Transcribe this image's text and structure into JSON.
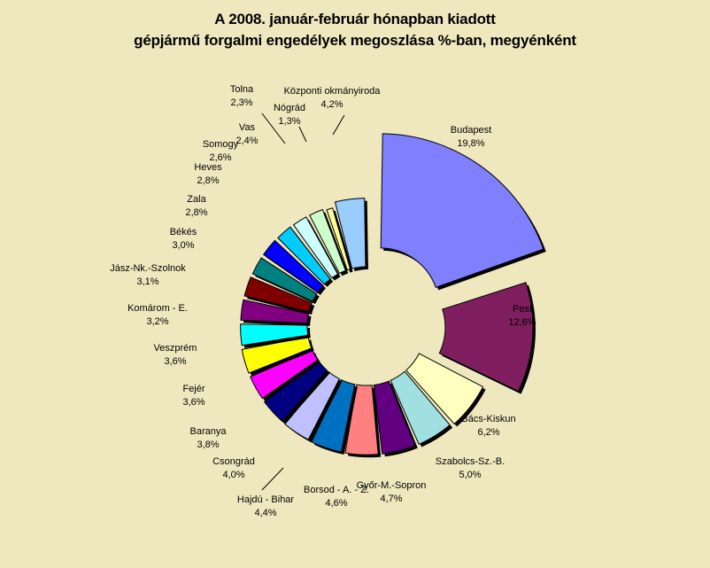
{
  "chart_data": {
    "type": "pie",
    "title_line1": "A  2008. január-február hónapban kiadott",
    "title_line2": "gépjármű forgalmi engedélyek megoszlása %-ban, megyénként",
    "slices": [
      {
        "label": "Budapest",
        "value": 19.8,
        "value_label": "19,8%",
        "color": "#8080ff"
      },
      {
        "label": "Pest",
        "value": 12.6,
        "value_label": "12,6%",
        "color": "#7f1f5f"
      },
      {
        "label": "Bács-Kiskun",
        "value": 6.2,
        "value_label": "6,2%",
        "color": "#ffffc0"
      },
      {
        "label": "Szabolcs-Sz.-B.",
        "value": 5.0,
        "value_label": "5,0%",
        "color": "#a0e0e0"
      },
      {
        "label": "Győr-M.-Sopron",
        "value": 4.7,
        "value_label": "4,7%",
        "color": "#600080"
      },
      {
        "label": "Borsod - A. - Z.",
        "value": 4.6,
        "value_label": "4,6%",
        "color": "#ff8080"
      },
      {
        "label": "Hajdú - Bihar",
        "value": 4.4,
        "value_label": "4,4%",
        "color": "#0070c0"
      },
      {
        "label": "Csongrád",
        "value": 4.0,
        "value_label": "4,0%",
        "color": "#c0c0ff"
      },
      {
        "label": "Baranya",
        "value": 3.8,
        "value_label": "3,8%",
        "color": "#000080"
      },
      {
        "label": "Fejér",
        "value": 3.6,
        "value_label": "3,6%",
        "color": "#ff00ff"
      },
      {
        "label": "Veszprém",
        "value": 3.6,
        "value_label": "3,6%",
        "color": "#ffff00"
      },
      {
        "label": "Komárom - E.",
        "value": 3.2,
        "value_label": "3,2%",
        "color": "#00ffff"
      },
      {
        "label": "Jász-Nk.-Szolnok",
        "value": 3.1,
        "value_label": "3,1%",
        "color": "#800080"
      },
      {
        "label": "Békés",
        "value": 3.0,
        "value_label": "3,0%",
        "color": "#800000"
      },
      {
        "label": "Zala",
        "value": 2.8,
        "value_label": "2,8%",
        "color": "#008080"
      },
      {
        "label": "Heves",
        "value": 2.8,
        "value_label": "2,8%",
        "color": "#0000ff"
      },
      {
        "label": "Somogy",
        "value": 2.6,
        "value_label": "2,6%",
        "color": "#00ccff"
      },
      {
        "label": "Vas",
        "value": 2.4,
        "value_label": "2,4%",
        "color": "#ccffff"
      },
      {
        "label": "Tolna",
        "value": 2.3,
        "value_label": "2,3%",
        "color": "#ccffcc"
      },
      {
        "label": "Nógrád",
        "value": 1.3,
        "value_label": "1,3%",
        "color": "#ffff99"
      },
      {
        "label": "Központi okmányiroda",
        "value": 4.2,
        "value_label": "4,2%",
        "color": "#99ccff"
      }
    ]
  }
}
